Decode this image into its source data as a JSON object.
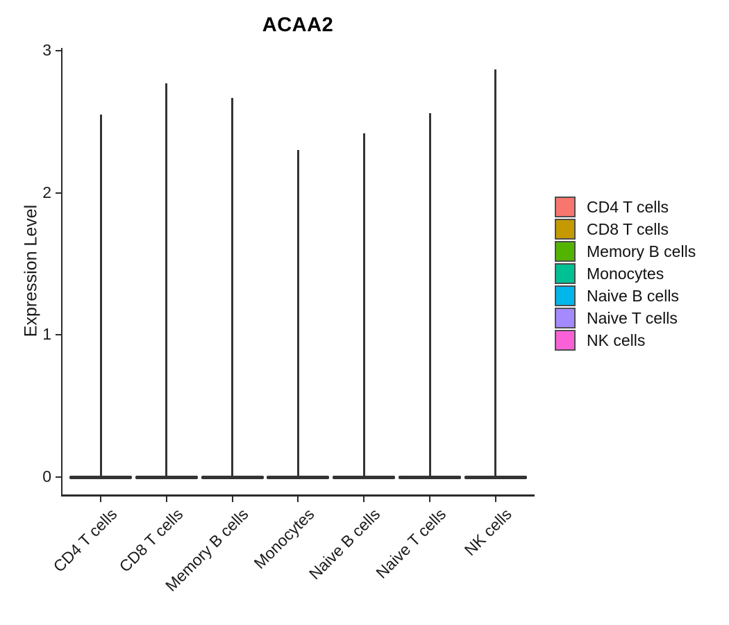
{
  "figure": {
    "title": "ACAA2"
  },
  "axes": {
    "y_label": "Expression Level",
    "y_tick_labels": [
      "0",
      "1",
      "2",
      "3"
    ]
  },
  "legend": {
    "items": [
      {
        "label": "CD4 T cells",
        "color": "#F8766D"
      },
      {
        "label": "CD8 T cells",
        "color": "#C49A00"
      },
      {
        "label": "Memory B cells",
        "color": "#53B400"
      },
      {
        "label": "Monocytes",
        "color": "#00C094"
      },
      {
        "label": "Naive B cells",
        "color": "#00B6EB"
      },
      {
        "label": "Naive T cells",
        "color": "#A58AFF"
      },
      {
        "label": "NK cells",
        "color": "#FB61D7"
      }
    ]
  },
  "chart_data": {
    "type": "violin",
    "title": "ACAA2",
    "ylabel": "Expression Level",
    "ylim": [
      0,
      3
    ],
    "y_ticks": [
      0,
      1,
      2,
      3
    ],
    "categories": [
      "CD4 T cells",
      "CD8 T cells",
      "Memory B cells",
      "Monocytes",
      "Naive B cells",
      "Naive T cells",
      "NK cells"
    ],
    "series": [
      {
        "name": "CD4 T cells",
        "color": "#F8766D",
        "max": 2.55,
        "median": 0,
        "density_peak": 0
      },
      {
        "name": "CD8 T cells",
        "color": "#C49A00",
        "max": 2.77,
        "median": 0,
        "density_peak": 0
      },
      {
        "name": "Memory B cells",
        "color": "#53B400",
        "max": 2.67,
        "median": 0,
        "density_peak": 0
      },
      {
        "name": "Monocytes",
        "color": "#00C094",
        "max": 2.3,
        "median": 0,
        "density_peak": 0
      },
      {
        "name": "Naive B cells",
        "color": "#00B6EB",
        "max": 2.42,
        "median": 0,
        "density_peak": 0
      },
      {
        "name": "Naive T cells",
        "color": "#A58AFF",
        "max": 2.56,
        "median": 0,
        "density_peak": 0
      },
      {
        "name": "NK cells",
        "color": "#FB61D7",
        "max": 2.87,
        "median": 0,
        "density_peak": 0
      }
    ],
    "shape_note": "density mass concentrated at 0 with a thin tail rising to max",
    "legend_position": "right",
    "grid": false
  },
  "colors": {
    "background": "#ffffff",
    "axis": "#2b2b2b",
    "violin_outline": "#343434",
    "text": "#1a1a1a"
  }
}
